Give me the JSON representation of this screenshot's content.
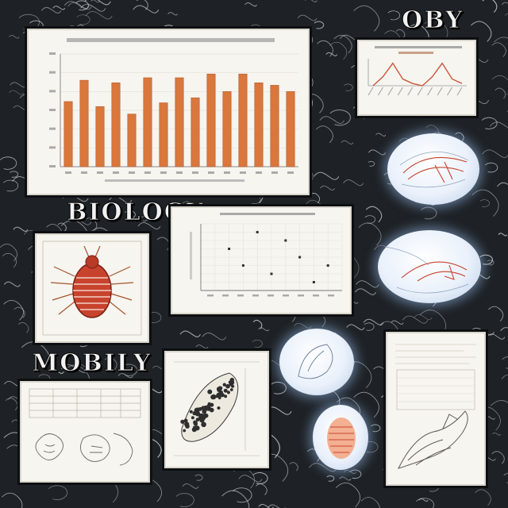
{
  "words": {
    "top_right": "OBY",
    "mid_left": "BIOLOGY",
    "lower_left": "MOBILY"
  },
  "colors": {
    "background": "#1e2226",
    "bar": "#d9773d",
    "line_peak": "#c9573a",
    "specimen_red": "#c8432e",
    "oval_glow": "#b9cbe6"
  },
  "chart_data": [
    {
      "type": "bar",
      "values": [
        52,
        69,
        48,
        67,
        42,
        71,
        51,
        71,
        55,
        74,
        60,
        74,
        67,
        65,
        60
      ],
      "ylim": [
        0,
        90
      ],
      "grid": true
    },
    {
      "type": "line",
      "values": [
        0,
        4,
        10,
        3,
        1,
        0,
        4,
        10,
        3,
        1
      ],
      "ylim": [
        0,
        12
      ]
    },
    {
      "type": "scatter",
      "x": [
        2,
        3,
        4,
        5,
        6,
        7,
        8,
        9
      ],
      "y": [
        5,
        3,
        7,
        2,
        6,
        4,
        1,
        3
      ],
      "grid": true
    }
  ],
  "icons": {
    "specimen_1": "bug-specimen-icon",
    "specimen_2": "leaf-specimen-icon",
    "specimen_3": "cell-specimen-icon"
  }
}
